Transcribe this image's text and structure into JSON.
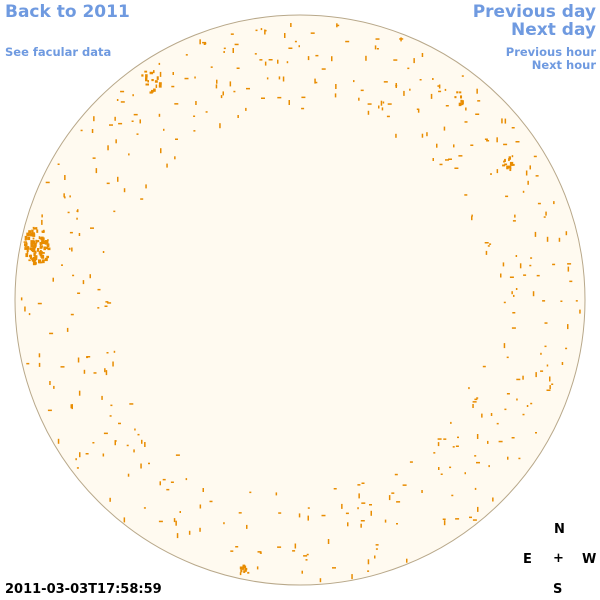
{
  "nav": {
    "back": "Back to 2011",
    "facular": "See facular data",
    "previous_day": "Previous day",
    "next_day": "Next day",
    "previous_hour": "Previous hour",
    "next_hour": "Next hour"
  },
  "timestamp": "2011-03-03T17:58:59",
  "compass": {
    "north": "N",
    "east": "E",
    "center": "+",
    "west": "W",
    "south": "S"
  },
  "colors": {
    "link": "#6f9ae0",
    "disk_fill": "#fffaf0",
    "disk_outline": "#b8a88a",
    "spot": "#e88c00"
  }
}
